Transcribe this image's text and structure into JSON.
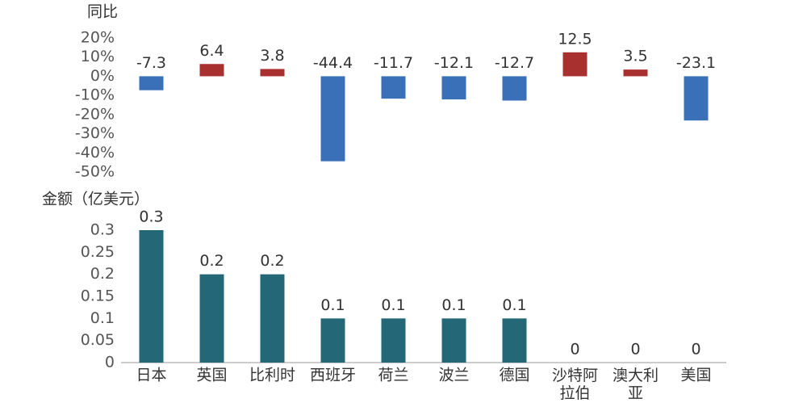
{
  "chart_data": [
    {
      "type": "bar",
      "title": "同比",
      "values": [
        -7.3,
        6.4,
        3.8,
        -44.4,
        -11.7,
        -12.1,
        -12.7,
        12.5,
        3.5,
        -23.1
      ],
      "positive_color": "#a8312f",
      "negative_color": "#3a70b8",
      "ylim": [
        -50,
        20
      ],
      "yticks": [
        {
          "value": 20,
          "label": "20%"
        },
        {
          "value": 10,
          "label": "10%"
        },
        {
          "value": 0,
          "label": "0%"
        },
        {
          "value": -10,
          "label": "-10%"
        },
        {
          "value": -20,
          "label": "-20%"
        },
        {
          "value": -30,
          "label": "-30%"
        },
        {
          "value": -40,
          "label": "-40%"
        },
        {
          "value": -50,
          "label": "-50%"
        }
      ]
    },
    {
      "type": "bar",
      "title": "金额（亿美元）",
      "categories": [
        "日本",
        "英国",
        "比利时",
        "西班牙",
        "荷兰",
        "波兰",
        "德国",
        "沙特阿拉伯",
        "澳大利亚",
        "美国"
      ],
      "values": [
        0.3,
        0.2,
        0.2,
        0.1,
        0.1,
        0.1,
        0.1,
        0,
        0,
        0
      ],
      "color": "#246878",
      "ylim": [
        0,
        0.3
      ],
      "yticks": [
        0,
        0.05,
        0.1,
        0.15,
        0.2,
        0.25,
        0.3
      ]
    }
  ]
}
